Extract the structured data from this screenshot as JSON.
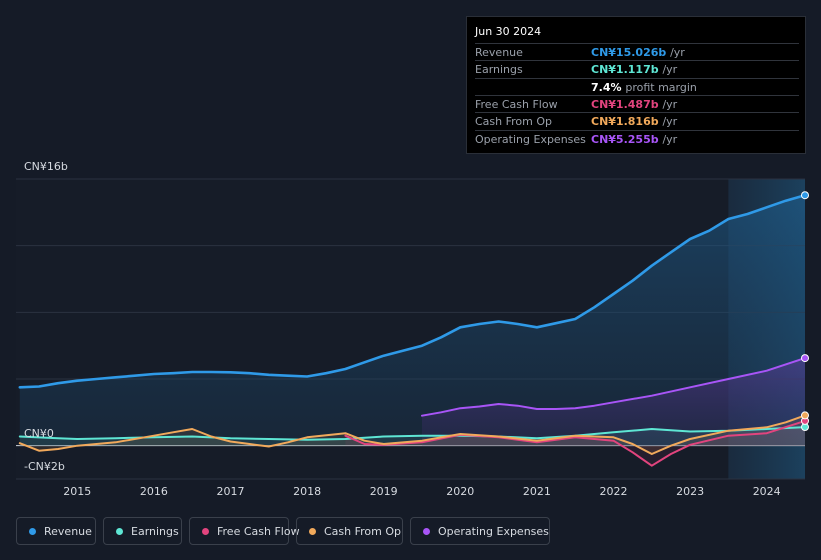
{
  "tooltip": {
    "date": "Jun 30 2024",
    "rows": [
      {
        "label": "Revenue",
        "value": "CN¥15.026b",
        "unit": "/yr",
        "color": "#2f9ae8"
      },
      {
        "label": "Earnings",
        "value": "CN¥1.117b",
        "unit": "/yr",
        "color": "#5ee6d4"
      },
      {
        "label": "",
        "value": "7.4%",
        "unit": "profit margin",
        "color": "#ffffff"
      },
      {
        "label": "Free Cash Flow",
        "value": "CN¥1.487b",
        "unit": "/yr",
        "color": "#e2447e"
      },
      {
        "label": "Cash From Op",
        "value": "CN¥1.816b",
        "unit": "/yr",
        "color": "#f1a95b"
      },
      {
        "label": "Operating Expenses",
        "value": "CN¥5.255b",
        "unit": "/yr",
        "color": "#a855f7"
      }
    ]
  },
  "legend": [
    {
      "label": "Revenue",
      "color": "#2f9ae8"
    },
    {
      "label": "Earnings",
      "color": "#5ee6d4"
    },
    {
      "label": "Free Cash Flow",
      "color": "#e2447e"
    },
    {
      "label": "Cash From Op",
      "color": "#f1a95b"
    },
    {
      "label": "Operating Expenses",
      "color": "#a855f7"
    }
  ],
  "chart_data": {
    "type": "area",
    "y_label_top": "CN¥16b",
    "y_label_zero": "CN¥0",
    "y_label_bottom": "-CN¥2b",
    "ylim": [
      -2,
      16
    ],
    "xlim": [
      2014.2,
      2024.5
    ],
    "x_ticks": [
      "2015",
      "2016",
      "2017",
      "2018",
      "2019",
      "2020",
      "2021",
      "2022",
      "2023",
      "2024"
    ],
    "highlight_start": 2023.5,
    "series": [
      {
        "name": "Revenue",
        "color": "#2f9ae8",
        "points": [
          [
            2014.25,
            3.5
          ],
          [
            2014.5,
            3.55
          ],
          [
            2014.75,
            3.75
          ],
          [
            2015,
            3.9
          ],
          [
            2015.25,
            4
          ],
          [
            2015.5,
            4.1
          ],
          [
            2015.75,
            4.2
          ],
          [
            2016,
            4.3
          ],
          [
            2016.25,
            4.35
          ],
          [
            2016.5,
            4.42
          ],
          [
            2016.75,
            4.42
          ],
          [
            2017,
            4.4
          ],
          [
            2017.25,
            4.35
          ],
          [
            2017.5,
            4.25
          ],
          [
            2017.75,
            4.2
          ],
          [
            2018,
            4.15
          ],
          [
            2018.25,
            4.35
          ],
          [
            2018.5,
            4.6
          ],
          [
            2018.75,
            5
          ],
          [
            2019,
            5.4
          ],
          [
            2019.25,
            5.7
          ],
          [
            2019.5,
            6
          ],
          [
            2019.75,
            6.5
          ],
          [
            2020,
            7.1
          ],
          [
            2020.25,
            7.3
          ],
          [
            2020.5,
            7.45
          ],
          [
            2020.75,
            7.3
          ],
          [
            2021,
            7.1
          ],
          [
            2021.25,
            7.35
          ],
          [
            2021.5,
            7.6
          ],
          [
            2021.75,
            8.3
          ],
          [
            2022,
            9.1
          ],
          [
            2022.25,
            9.9
          ],
          [
            2022.5,
            10.8
          ],
          [
            2022.75,
            11.6
          ],
          [
            2023,
            12.4
          ],
          [
            2023.25,
            12.9
          ],
          [
            2023.5,
            13.6
          ],
          [
            2023.75,
            13.9
          ],
          [
            2024,
            14.3
          ],
          [
            2024.25,
            14.7
          ],
          [
            2024.5,
            15.026
          ]
        ]
      },
      {
        "name": "Earnings",
        "color": "#5ee6d4",
        "points": [
          [
            2014.25,
            0.55
          ],
          [
            2014.75,
            0.45
          ],
          [
            2015,
            0.4
          ],
          [
            2015.5,
            0.45
          ],
          [
            2016,
            0.5
          ],
          [
            2016.5,
            0.55
          ],
          [
            2017,
            0.45
          ],
          [
            2017.5,
            0.4
          ],
          [
            2018,
            0.35
          ],
          [
            2018.5,
            0.4
          ],
          [
            2019,
            0.55
          ],
          [
            2019.5,
            0.6
          ],
          [
            2020,
            0.6
          ],
          [
            2020.5,
            0.55
          ],
          [
            2021,
            0.45
          ],
          [
            2021.5,
            0.6
          ],
          [
            2022,
            0.8
          ],
          [
            2022.5,
            1
          ],
          [
            2023,
            0.85
          ],
          [
            2023.5,
            0.9
          ],
          [
            2024,
            1
          ],
          [
            2024.5,
            1.117
          ]
        ]
      },
      {
        "name": "Free Cash Flow",
        "color": "#e2447e",
        "points": [
          [
            2018.5,
            0.6
          ],
          [
            2018.75,
            0.1
          ],
          [
            2019,
            0.05
          ],
          [
            2019.5,
            0.2
          ],
          [
            2020,
            0.65
          ],
          [
            2020.5,
            0.5
          ],
          [
            2021,
            0.2
          ],
          [
            2021.5,
            0.5
          ],
          [
            2022,
            0.3
          ],
          [
            2022.25,
            -0.4
          ],
          [
            2022.5,
            -1.2
          ],
          [
            2022.75,
            -0.5
          ],
          [
            2023,
            0.05
          ],
          [
            2023.5,
            0.6
          ],
          [
            2024,
            0.75
          ],
          [
            2024.5,
            1.487
          ]
        ]
      },
      {
        "name": "Cash From Op",
        "color": "#f1a95b",
        "points": [
          [
            2014.25,
            0.15
          ],
          [
            2014.5,
            -0.3
          ],
          [
            2014.75,
            -0.2
          ],
          [
            2015,
            0
          ],
          [
            2015.5,
            0.2
          ],
          [
            2016,
            0.6
          ],
          [
            2016.25,
            0.8
          ],
          [
            2016.5,
            1
          ],
          [
            2016.75,
            0.55
          ],
          [
            2017,
            0.25
          ],
          [
            2017.25,
            0.1
          ],
          [
            2017.5,
            -0.05
          ],
          [
            2017.75,
            0.2
          ],
          [
            2018,
            0.5
          ],
          [
            2018.5,
            0.75
          ],
          [
            2018.75,
            0.3
          ],
          [
            2019,
            0.1
          ],
          [
            2019.5,
            0.3
          ],
          [
            2020,
            0.7
          ],
          [
            2020.5,
            0.55
          ],
          [
            2021,
            0.3
          ],
          [
            2021.5,
            0.6
          ],
          [
            2022,
            0.5
          ],
          [
            2022.25,
            0.1
          ],
          [
            2022.5,
            -0.5
          ],
          [
            2022.75,
            0
          ],
          [
            2023,
            0.4
          ],
          [
            2023.5,
            0.9
          ],
          [
            2024,
            1.1
          ],
          [
            2024.25,
            1.4
          ],
          [
            2024.5,
            1.816
          ]
        ]
      },
      {
        "name": "Operating Expenses",
        "color": "#a855f7",
        "points": [
          [
            2019.5,
            1.8
          ],
          [
            2019.75,
            2
          ],
          [
            2020,
            2.25
          ],
          [
            2020.25,
            2.35
          ],
          [
            2020.5,
            2.5
          ],
          [
            2020.75,
            2.4
          ],
          [
            2021,
            2.2
          ],
          [
            2021.25,
            2.2
          ],
          [
            2021.5,
            2.25
          ],
          [
            2021.75,
            2.4
          ],
          [
            2022,
            2.6
          ],
          [
            2022.5,
            3
          ],
          [
            2023,
            3.5
          ],
          [
            2023.5,
            4
          ],
          [
            2024,
            4.5
          ],
          [
            2024.5,
            5.255
          ]
        ]
      }
    ]
  }
}
